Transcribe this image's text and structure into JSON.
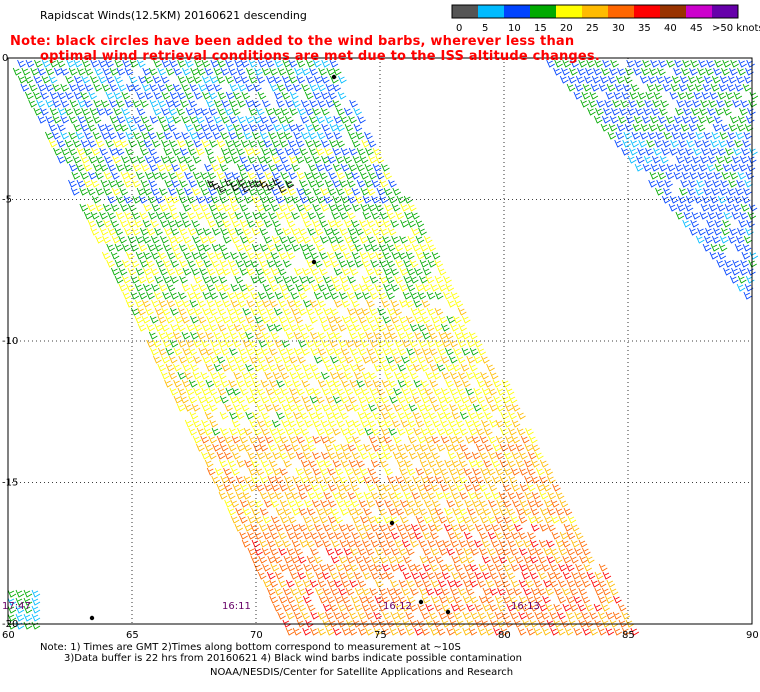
{
  "title": "Rapidscat Winds(12.5KM) 20160621 descending",
  "note_lines": [
    "Note: black circles have been added to the wind barbs, wherever less than",
    "optimal wind retrieval conditions are met due to the ISS altitude changes."
  ],
  "colorbar": {
    "labels": [
      "0",
      "5",
      "10",
      "15",
      "20",
      "25",
      "30",
      "35",
      "40",
      "45",
      ">50 knots"
    ],
    "colors": [
      "#555555",
      "#00bbff",
      "#0044ff",
      "#00aa00",
      "#ffff00",
      "#ffbb00",
      "#ff6600",
      "#ff0000",
      "#993300",
      "#cc00cc",
      "#6600aa"
    ]
  },
  "axes": {
    "lon_ticks": [
      "60",
      "65",
      "70",
      "75",
      "80",
      "85",
      "90"
    ],
    "lat_ticks": [
      "0",
      "-5",
      "-10",
      "-15",
      "-20"
    ]
  },
  "pass_times": [
    "17:47",
    "16:11",
    "16:12",
    "16:13"
  ],
  "footer": {
    "line1": "Note: 1) Times are GMT 2)Times along bottom correspond to measurement at ~10S",
    "line2": "3)Data buffer is 22 hrs from 20160621 4) Black wind barbs indicate possible contamination",
    "line3": "NOAA/NESDIS/Center for Satellite Applications and Research"
  }
}
